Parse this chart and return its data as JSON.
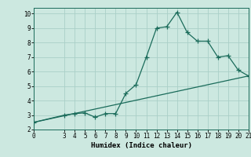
{
  "xlabel": "Humidex (Indice chaleur)",
  "background_color": "#cce8e0",
  "grid_color": "#aacfc8",
  "line_color": "#1a6b5a",
  "xlim": [
    0,
    21
  ],
  "ylim": [
    2,
    10.4
  ],
  "xticks": [
    0,
    3,
    4,
    5,
    6,
    7,
    8,
    9,
    10,
    11,
    12,
    13,
    14,
    15,
    16,
    17,
    18,
    19,
    20,
    21
  ],
  "yticks": [
    2,
    3,
    4,
    5,
    6,
    7,
    8,
    9,
    10
  ],
  "curve_x": [
    0,
    3,
    4,
    5,
    6,
    7,
    8,
    9,
    10,
    11,
    12,
    13,
    14,
    15,
    16,
    17,
    18,
    19,
    20,
    21
  ],
  "curve_y": [
    2.5,
    3.0,
    3.1,
    3.15,
    2.85,
    3.1,
    3.1,
    4.5,
    5.1,
    7.0,
    9.0,
    9.1,
    10.1,
    8.7,
    8.1,
    8.1,
    7.0,
    7.1,
    6.1,
    5.7
  ],
  "trend_x": [
    0,
    21
  ],
  "trend_y": [
    2.5,
    5.7
  ],
  "marker_style": "+",
  "marker_size": 4,
  "line_width": 0.9,
  "axis_fontsize": 6.5,
  "tick_fontsize": 5.5
}
